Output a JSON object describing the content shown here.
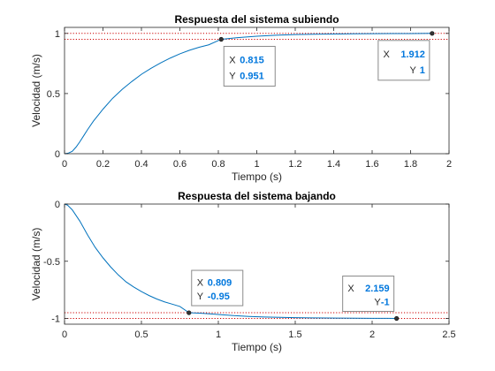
{
  "colors": {
    "line": "#0072bd",
    "refline": "#cc0000",
    "datatip_value": "#0077dd",
    "axis": "#262626",
    "datatip_bg": "#ffffff",
    "datatip_border": "#8a8a8a"
  },
  "chart_data": [
    {
      "type": "line",
      "title": "Respuesta del sistema subiendo",
      "xlabel": "Tiempo (s)",
      "ylabel": "Velocidad (m/s)",
      "xlim": [
        0,
        2
      ],
      "ylim": [
        0,
        1.05
      ],
      "xticks": [
        0,
        0.2,
        0.4,
        0.6,
        0.8,
        1,
        1.2,
        1.4,
        1.6,
        1.8,
        2
      ],
      "xtick_labels": [
        "0",
        "0.2",
        "0.4",
        "0.6",
        "0.8",
        "1",
        "1.2",
        "1.4",
        "1.6",
        "1.8",
        "2"
      ],
      "yticks": [
        0,
        0.5,
        1
      ],
      "ytick_labels": [
        "0",
        "0.5",
        "1"
      ],
      "grid": false,
      "series": [
        {
          "x": [
            0,
            0.02,
            0.04,
            0.06,
            0.08,
            0.1,
            0.12,
            0.15,
            0.2,
            0.25,
            0.3,
            0.35,
            0.4,
            0.45,
            0.5,
            0.55,
            0.6,
            0.65,
            0.7,
            0.75,
            0.815,
            0.9,
            1.0,
            1.1,
            1.2,
            1.3,
            1.4,
            1.5,
            1.6,
            1.7,
            1.8,
            1.912
          ],
          "y": [
            0,
            0.005,
            0.02,
            0.055,
            0.1,
            0.15,
            0.2,
            0.27,
            0.37,
            0.46,
            0.535,
            0.6,
            0.66,
            0.71,
            0.755,
            0.795,
            0.83,
            0.86,
            0.885,
            0.905,
            0.951,
            0.965,
            0.977,
            0.985,
            0.99,
            0.993,
            0.995,
            0.997,
            0.998,
            0.999,
            0.999,
            1
          ]
        }
      ],
      "reference_lines": [
        1,
        0.951
      ],
      "datatips": [
        {
          "x": 0.815,
          "y": 0.951,
          "x_label": "X",
          "y_label": "Y",
          "x_text": "0.815",
          "y_text": "0.951"
        },
        {
          "x": 1.912,
          "y": 1,
          "x_label": "X",
          "y_label": "Y",
          "x_text": "1.912",
          "y_text": "1"
        }
      ]
    },
    {
      "type": "line",
      "title": "Respuesta del sistema bajando",
      "xlabel": "Tiempo (s)",
      "ylabel": "Velocidad (m/s)",
      "xlim": [
        0,
        2.5
      ],
      "ylim": [
        -1.05,
        0
      ],
      "xticks": [
        0,
        0.5,
        1,
        1.5,
        2,
        2.5
      ],
      "xtick_labels": [
        "0",
        "0.5",
        "1",
        "1.5",
        "2",
        "2.5"
      ],
      "yticks": [
        -1,
        -0.5,
        0
      ],
      "ytick_labels": [
        "-1",
        "-0.5",
        "0"
      ],
      "grid": false,
      "series": [
        {
          "x": [
            0,
            0.02,
            0.05,
            0.1,
            0.15,
            0.2,
            0.25,
            0.3,
            0.35,
            0.4,
            0.45,
            0.5,
            0.55,
            0.6,
            0.65,
            0.7,
            0.75,
            0.809,
            0.9,
            1.0,
            1.1,
            1.2,
            1.3,
            1.4,
            1.5,
            1.6,
            1.7,
            1.8,
            1.9,
            2.0,
            2.1,
            2.159
          ],
          "y": [
            0,
            -0.01,
            -0.05,
            -0.15,
            -0.27,
            -0.38,
            -0.47,
            -0.55,
            -0.62,
            -0.68,
            -0.725,
            -0.765,
            -0.8,
            -0.83,
            -0.855,
            -0.875,
            -0.895,
            -0.95,
            -0.955,
            -0.965,
            -0.975,
            -0.982,
            -0.987,
            -0.99,
            -0.993,
            -0.995,
            -0.996,
            -0.997,
            -0.998,
            -0.999,
            -0.999,
            -1
          ]
        }
      ],
      "reference_lines": [
        -0.95,
        -1
      ],
      "datatips": [
        {
          "x": 0.809,
          "y": -0.95,
          "x_label": "X",
          "y_label": "Y",
          "x_text": "0.809",
          "y_text": "-0.95"
        },
        {
          "x": 2.159,
          "y": -1,
          "x_label": "X",
          "y_label": "Y",
          "x_text": "2.159",
          "y_text": "-1"
        }
      ]
    }
  ]
}
